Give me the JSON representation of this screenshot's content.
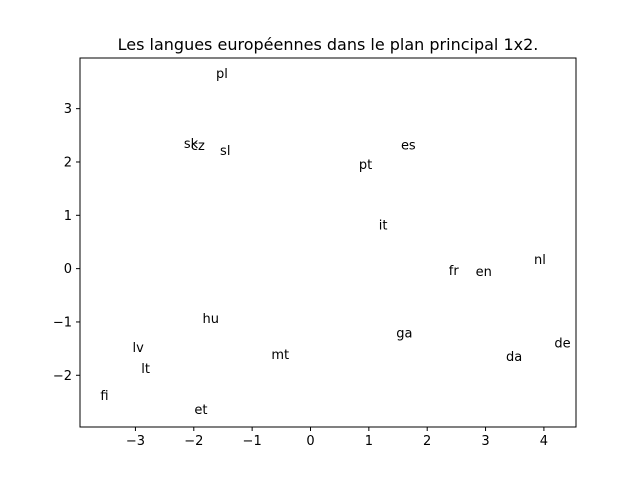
{
  "chart_data": {
    "type": "scatter",
    "title": "Les langues européennes dans le plan principal 1x2.",
    "xlabel": "",
    "ylabel": "",
    "xlim": [
      -3.95,
      4.55
    ],
    "ylim": [
      -2.97,
      3.95
    ],
    "grid": false,
    "xticks": [
      {
        "value": -3,
        "label": "−3"
      },
      {
        "value": -2,
        "label": "−2"
      },
      {
        "value": -1,
        "label": "−1"
      },
      {
        "value": 0,
        "label": "0"
      },
      {
        "value": 1,
        "label": "1"
      },
      {
        "value": 2,
        "label": "2"
      },
      {
        "value": 3,
        "label": "3"
      },
      {
        "value": 4,
        "label": "4"
      }
    ],
    "yticks": [
      {
        "value": -2,
        "label": "−2"
      },
      {
        "value": -1,
        "label": "−1"
      },
      {
        "value": 0,
        "label": "0"
      },
      {
        "value": 1,
        "label": "1"
      },
      {
        "value": 2,
        "label": "2"
      },
      {
        "value": 3,
        "label": "3"
      }
    ],
    "points": [
      {
        "label": "pl",
        "x": -1.62,
        "y": 3.64
      },
      {
        "label": "sk",
        "x": -2.17,
        "y": 2.33
      },
      {
        "label": "cz",
        "x": -2.05,
        "y": 2.29
      },
      {
        "label": "sl",
        "x": -1.55,
        "y": 2.2
      },
      {
        "label": "es",
        "x": 1.55,
        "y": 2.3
      },
      {
        "label": "pt",
        "x": 0.83,
        "y": 1.93
      },
      {
        "label": "it",
        "x": 1.17,
        "y": 0.8
      },
      {
        "label": "nl",
        "x": 3.83,
        "y": 0.15
      },
      {
        "label": "fr",
        "x": 2.37,
        "y": -0.05
      },
      {
        "label": "en",
        "x": 2.83,
        "y": -0.07
      },
      {
        "label": "hu",
        "x": -1.85,
        "y": -0.95
      },
      {
        "label": "ga",
        "x": 1.47,
        "y": -1.23
      },
      {
        "label": "de",
        "x": 4.18,
        "y": -1.41
      },
      {
        "label": "lv",
        "x": -3.05,
        "y": -1.5
      },
      {
        "label": "mt",
        "x": -0.67,
        "y": -1.63
      },
      {
        "label": "da",
        "x": 3.35,
        "y": -1.67
      },
      {
        "label": "lt",
        "x": -2.9,
        "y": -1.89
      },
      {
        "label": "fi",
        "x": -3.6,
        "y": -2.4
      },
      {
        "label": "et",
        "x": -1.99,
        "y": -2.66
      }
    ]
  }
}
